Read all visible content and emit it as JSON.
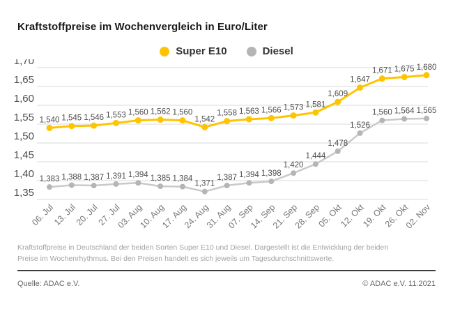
{
  "title": "Kraftstoffpreise im Wochenvergleich in Euro/Liter",
  "legend": [
    {
      "label": "Super E10",
      "color": "#FFC400"
    },
    {
      "label": "Diesel",
      "color": "#B5B5B5"
    }
  ],
  "chart_data": {
    "type": "line",
    "title": "Kraftstoffpreise im Wochenvergleich in Euro/Liter",
    "x": [
      "06. Jul",
      "13. Jul",
      "20. Jul",
      "27. Jul",
      "03. Aug",
      "10. Aug",
      "17. Aug",
      "24. Aug",
      "31. Aug",
      "07. Sep",
      "14. Sep",
      "21. Sep",
      "28. Sep",
      "05. Okt",
      "12. Okt",
      "19. Okt",
      "26. Okt",
      "02. Nov"
    ],
    "series": [
      {
        "name": "Super E10",
        "line_color": "#FFC400",
        "point_color": "#FFC400",
        "line_width": 3,
        "point_radius": 4.5,
        "values": [
          1.54,
          1.545,
          1.546,
          1.553,
          1.56,
          1.562,
          1.56,
          1.542,
          1.558,
          1.563,
          1.566,
          1.573,
          1.581,
          1.609,
          1.647,
          1.671,
          1.675,
          1.68
        ]
      },
      {
        "name": "Diesel",
        "line_color": "#C9C9C9",
        "point_color": "#B5B5B5",
        "line_width": 2.5,
        "point_radius": 4,
        "values": [
          1.383,
          1.388,
          1.387,
          1.391,
          1.394,
          1.385,
          1.384,
          1.371,
          1.387,
          1.394,
          1.398,
          1.42,
          1.444,
          1.478,
          1.526,
          1.56,
          1.564,
          1.565
        ]
      }
    ],
    "ylim": [
      1.35,
      1.7
    ],
    "yticks": [
      1.7,
      1.65,
      1.6,
      1.55,
      1.5,
      1.45,
      1.4,
      1.35
    ],
    "ytick_labels": [
      "1,70",
      "1,65",
      "1,60",
      "1,55",
      "1,50",
      "1,45",
      "1,40",
      "1,35"
    ],
    "xlabel": "",
    "ylabel": "Euro/Liter",
    "grid": true,
    "legend_position": "top-center",
    "value_labels": true,
    "decimal_separator": ","
  },
  "style": {
    "grid_color": "#DADADA",
    "ytick_color": "#4D4D4D",
    "xtick_color": "#757575",
    "value_label_color": "#4D4D4D"
  },
  "footnote": "Kraftstoffpreise in Deutschland der beiden Sorten Super E10 und Diesel. Dargestellt ist die Entwicklung der beiden Preise im Wochenrhythmus. Bei den Preisen handelt es sich jeweils um Tagesdurchschnittswerte.",
  "source": "Quelle: ADAC e.V.",
  "copyright": "© ADAC e.V. 11.2021"
}
